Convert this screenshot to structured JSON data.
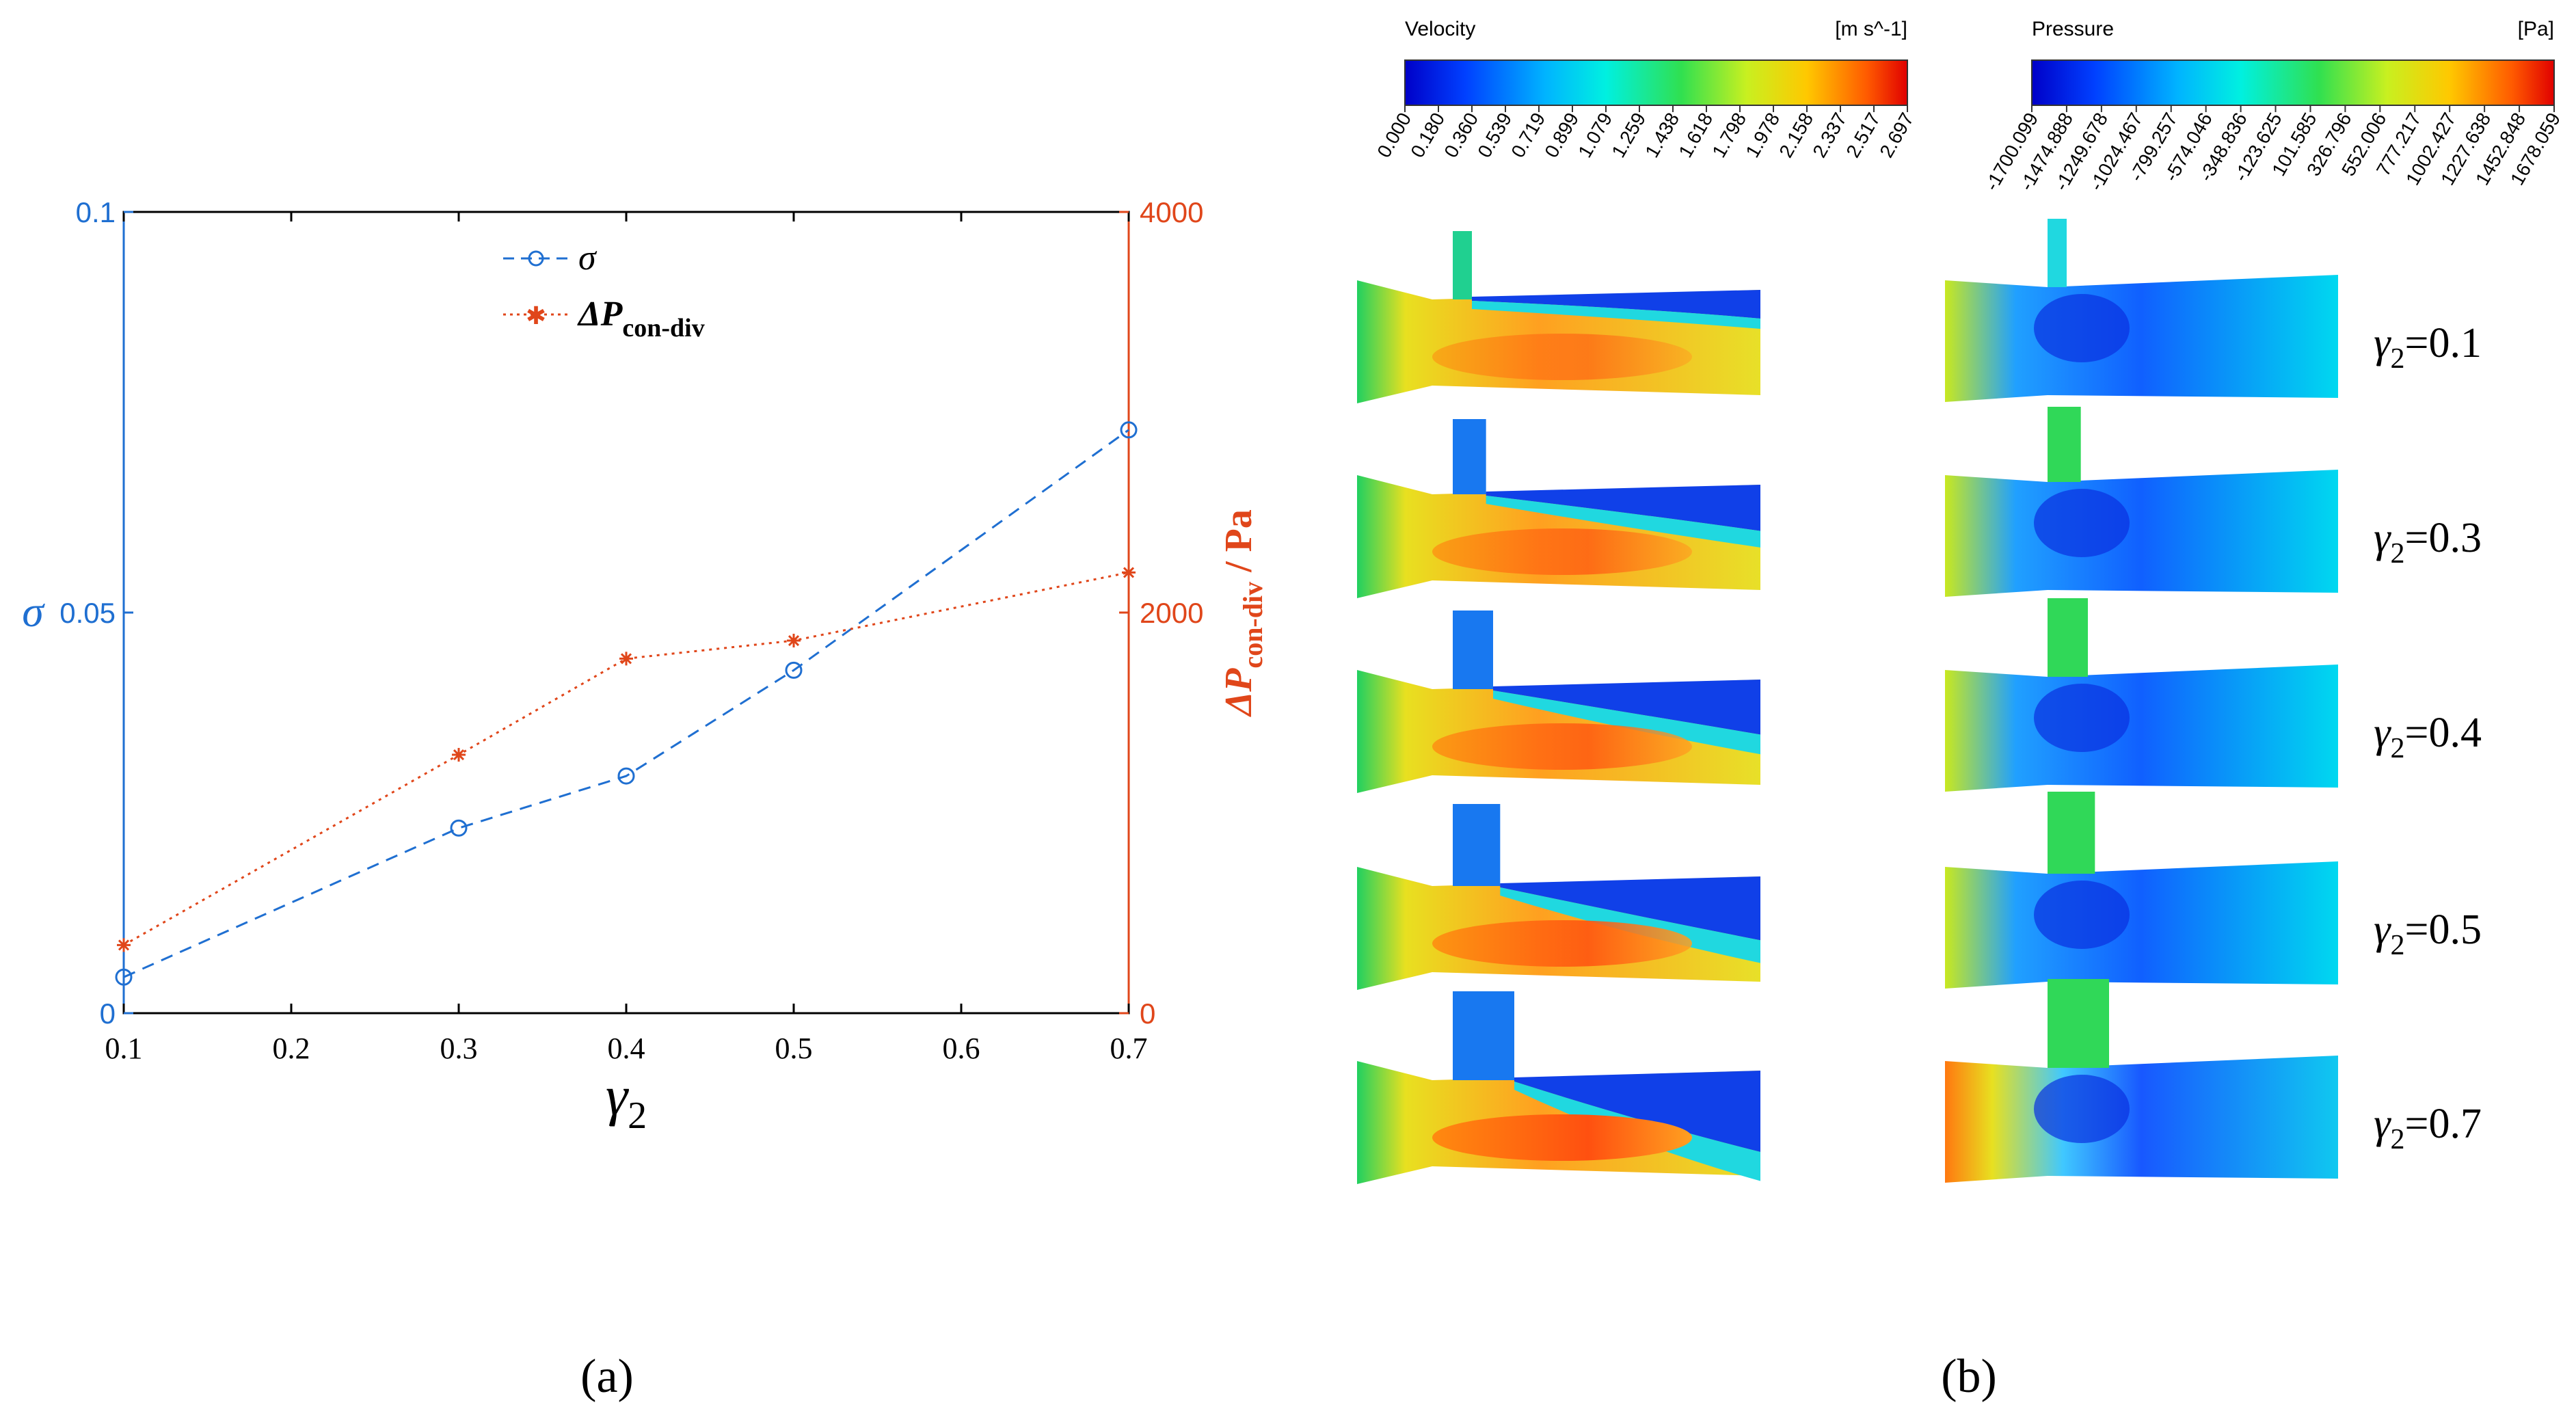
{
  "chart_data": {
    "type": "line",
    "xlabel": "γ2",
    "ylabel_left": "σ",
    "ylabel_right": "ΔPcon-div / Pa",
    "xlim": [
      0.1,
      0.7
    ],
    "ylim_left": [
      0,
      0.1
    ],
    "ylim_right": [
      0,
      4000
    ],
    "x_ticks": [
      "0.1",
      "0.2",
      "0.3",
      "0.4",
      "0.5",
      "0.6",
      "0.7"
    ],
    "y_left_ticks": [
      "0",
      "0.05",
      "0.1"
    ],
    "y_right_ticks": [
      "0",
      "2000",
      "4000"
    ],
    "legend_position": "top-center",
    "series": [
      {
        "name": "σ",
        "legend": "σ",
        "axis": "left",
        "style": "dashed-circle",
        "color": "#1f6fd1",
        "x": [
          0.1,
          0.3,
          0.4,
          0.5,
          0.7
        ],
        "values": [
          0.0045,
          0.0231,
          0.0296,
          0.0428,
          0.0728
        ]
      },
      {
        "name": "ΔPcon-div",
        "legend": "ΔPcon-div",
        "axis": "right",
        "style": "dotted-star",
        "color": "#e0461a",
        "x": [
          0.1,
          0.3,
          0.4,
          0.5,
          0.7
        ],
        "values": [
          340,
          1290,
          1770,
          1860,
          2200
        ]
      }
    ]
  },
  "contours": {
    "velocity_colorbar": {
      "title": "Velocity",
      "unit": "[m s^-1]",
      "ticks": [
        "0.000",
        "0.180",
        "0.360",
        "0.539",
        "0.719",
        "0.899",
        "1.079",
        "1.259",
        "1.438",
        "1.618",
        "1.798",
        "1.978",
        "2.158",
        "2.337",
        "2.517",
        "2.697"
      ]
    },
    "pressure_colorbar": {
      "title": "Pressure",
      "unit": "[Pa]",
      "ticks": [
        "-1700.099",
        "-1474.888",
        "-1249.678",
        "-1024.467",
        "-799.257",
        "-574.046",
        "-348.836",
        "-123.625",
        "101.585",
        "326.796",
        "552.006",
        "777.217",
        "1002.427",
        "1227.638",
        "1452.848",
        "1678.059"
      ]
    },
    "cases": [
      {
        "label_prefix": "γ",
        "label_sub": "2",
        "label_value": "=0.1",
        "gamma": 0.1
      },
      {
        "label_prefix": "γ",
        "label_sub": "2",
        "label_value": "=0.3",
        "gamma": 0.3
      },
      {
        "label_prefix": "γ",
        "label_sub": "2",
        "label_value": "=0.4",
        "gamma": 0.4
      },
      {
        "label_prefix": "γ",
        "label_sub": "2",
        "label_value": "=0.5",
        "gamma": 0.5
      },
      {
        "label_prefix": "γ",
        "label_sub": "2",
        "label_value": "=0.7",
        "gamma": 0.7
      }
    ]
  },
  "panel_labels": {
    "a": "(a)",
    "b": "(b)"
  },
  "colors": {
    "left_axis": "#1f6fd1",
    "right_axis": "#e0461a",
    "axis": "#000000"
  }
}
